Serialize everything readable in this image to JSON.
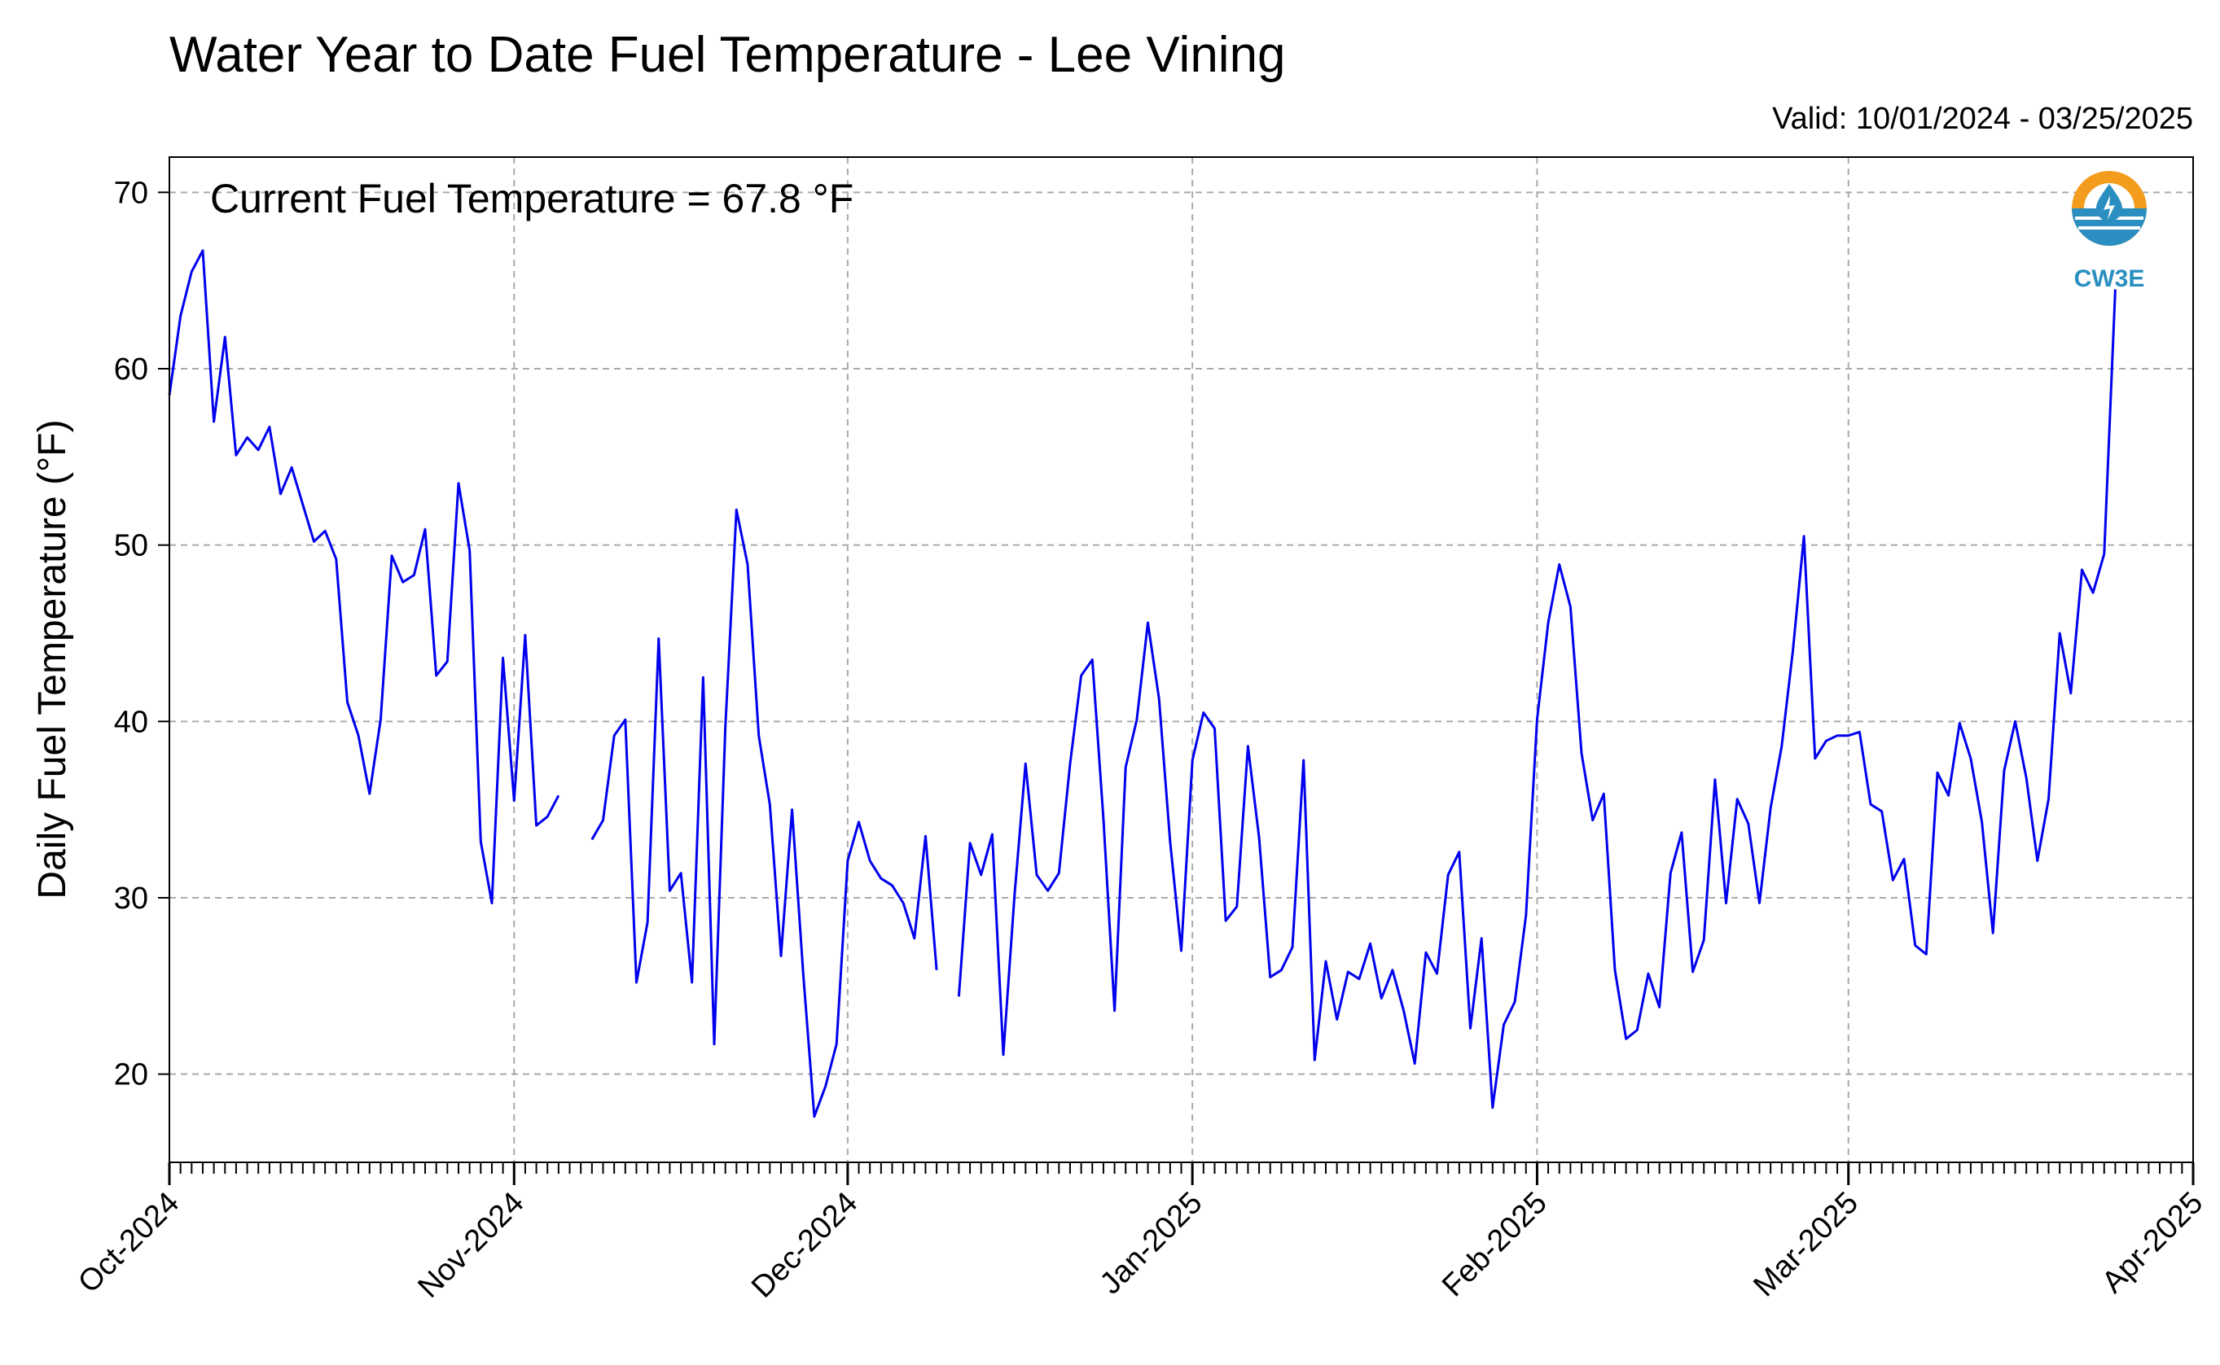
{
  "chart_data": {
    "type": "line",
    "title": "Water Year to Date Fuel Temperature - Lee Vining",
    "subtitle": "Valid: 10/01/2024 - 03/25/2025",
    "annotation": "Current Fuel Temperature = 67.8 °F",
    "ylabel": "Daily Fuel Temperature (°F)",
    "xlabel": "",
    "xlim": [
      "2024-10-01",
      "2025-04-01"
    ],
    "ylim": [
      15,
      72
    ],
    "yticks": [
      20,
      30,
      40,
      50,
      60,
      70
    ],
    "xticks": [
      {
        "date": "2024-10-01",
        "label": "Oct-2024"
      },
      {
        "date": "2024-11-01",
        "label": "Nov-2024"
      },
      {
        "date": "2024-12-01",
        "label": "Dec-2024"
      },
      {
        "date": "2025-01-01",
        "label": "Jan-2025"
      },
      {
        "date": "2025-02-01",
        "label": "Feb-2025"
      },
      {
        "date": "2025-03-01",
        "label": "Mar-2025"
      },
      {
        "date": "2025-04-01",
        "label": "Apr-2025"
      }
    ],
    "grid": true,
    "line_color": "#0000ee",
    "logo": {
      "text": "CW3E",
      "colors": {
        "ring": "#f39c1e",
        "water": "#2a8fc0"
      }
    },
    "series": [
      {
        "segments": [
          [
            [
              "2024-10-01",
              58.5
            ],
            [
              "2024-10-02",
              63.0
            ],
            [
              "2024-10-03",
              65.5
            ],
            [
              "2024-10-04",
              66.7
            ],
            [
              "2024-10-05",
              57.0
            ],
            [
              "2024-10-06",
              61.8
            ],
            [
              "2024-10-07",
              55.1
            ],
            [
              "2024-10-08",
              56.1
            ],
            [
              "2024-10-09",
              55.4
            ],
            [
              "2024-10-10",
              56.7
            ],
            [
              "2024-10-11",
              52.9
            ],
            [
              "2024-10-12",
              54.4
            ],
            [
              "2024-10-13",
              52.3
            ],
            [
              "2024-10-14",
              50.2
            ],
            [
              "2024-10-15",
              50.8
            ],
            [
              "2024-10-16",
              49.2
            ],
            [
              "2024-10-17",
              41.1
            ],
            [
              "2024-10-18",
              39.2
            ],
            [
              "2024-10-19",
              35.9
            ],
            [
              "2024-10-20",
              40.1
            ],
            [
              "2024-10-21",
              49.4
            ],
            [
              "2024-10-22",
              47.9
            ],
            [
              "2024-10-23",
              48.3
            ],
            [
              "2024-10-24",
              50.9
            ],
            [
              "2024-10-25",
              42.6
            ],
            [
              "2024-10-26",
              43.4
            ],
            [
              "2024-10-27",
              53.5
            ],
            [
              "2024-10-28",
              49.7
            ],
            [
              "2024-10-29",
              33.2
            ],
            [
              "2024-10-30",
              29.7
            ],
            [
              "2024-10-31",
              43.6
            ],
            [
              "2024-11-01",
              35.5
            ],
            [
              "2024-11-02",
              44.9
            ],
            [
              "2024-11-03",
              34.1
            ],
            [
              "2024-11-04",
              34.6
            ],
            [
              "2024-11-05",
              35.8
            ]
          ],
          [
            [
              "2024-11-08",
              33.3
            ],
            [
              "2024-11-09",
              34.4
            ],
            [
              "2024-11-10",
              39.2
            ],
            [
              "2024-11-11",
              40.1
            ],
            [
              "2024-11-12",
              25.2
            ],
            [
              "2024-11-13",
              28.6
            ],
            [
              "2024-11-14",
              44.7
            ],
            [
              "2024-11-15",
              30.4
            ],
            [
              "2024-11-16",
              31.4
            ],
            [
              "2024-11-17",
              25.2
            ],
            [
              "2024-11-18",
              42.5
            ],
            [
              "2024-11-19",
              21.7
            ],
            [
              "2024-11-20",
              39.7
            ],
            [
              "2024-11-21",
              52.0
            ],
            [
              "2024-11-22",
              48.9
            ],
            [
              "2024-11-23",
              39.2
            ],
            [
              "2024-11-24",
              35.3
            ],
            [
              "2024-11-25",
              26.7
            ],
            [
              "2024-11-26",
              35.0
            ],
            [
              "2024-11-27",
              25.7
            ],
            [
              "2024-11-28",
              17.6
            ],
            [
              "2024-11-29",
              19.3
            ],
            [
              "2024-11-30",
              21.7
            ],
            [
              "2024-12-01",
              32.1
            ],
            [
              "2024-12-02",
              34.3
            ],
            [
              "2024-12-03",
              32.1
            ],
            [
              "2024-12-04",
              31.1
            ],
            [
              "2024-12-05",
              30.7
            ],
            [
              "2024-12-06",
              29.7
            ],
            [
              "2024-12-07",
              27.7
            ],
            [
              "2024-12-08",
              33.5
            ],
            [
              "2024-12-09",
              25.9
            ]
          ],
          [
            [
              "2024-12-11",
              24.4
            ],
            [
              "2024-12-12",
              33.1
            ],
            [
              "2024-12-13",
              31.3
            ],
            [
              "2024-12-14",
              33.6
            ],
            [
              "2024-12-15",
              21.1
            ],
            [
              "2024-12-16",
              30.1
            ],
            [
              "2024-12-17",
              37.6
            ],
            [
              "2024-12-18",
              31.3
            ],
            [
              "2024-12-19",
              30.4
            ],
            [
              "2024-12-20",
              31.4
            ],
            [
              "2024-12-21",
              37.6
            ],
            [
              "2024-12-22",
              42.6
            ],
            [
              "2024-12-23",
              43.5
            ],
            [
              "2024-12-24",
              34.5
            ],
            [
              "2024-12-25",
              23.6
            ],
            [
              "2024-12-26",
              37.4
            ],
            [
              "2024-12-27",
              40.1
            ],
            [
              "2024-12-28",
              45.6
            ],
            [
              "2024-12-29",
              41.3
            ],
            [
              "2024-12-30",
              33.2
            ],
            [
              "2024-12-31",
              27.0
            ],
            [
              "2025-01-01",
              37.8
            ],
            [
              "2025-01-02",
              40.5
            ],
            [
              "2025-01-03",
              39.6
            ],
            [
              "2025-01-04",
              28.7
            ],
            [
              "2025-01-05",
              29.5
            ],
            [
              "2025-01-06",
              38.6
            ],
            [
              "2025-01-07",
              33.4
            ],
            [
              "2025-01-08",
              25.5
            ],
            [
              "2025-01-09",
              25.9
            ],
            [
              "2025-01-10",
              27.2
            ],
            [
              "2025-01-11",
              37.8
            ],
            [
              "2025-01-12",
              20.8
            ],
            [
              "2025-01-13",
              26.4
            ],
            [
              "2025-01-14",
              23.1
            ],
            [
              "2025-01-15",
              25.8
            ],
            [
              "2025-01-16",
              25.4
            ],
            [
              "2025-01-17",
              27.4
            ],
            [
              "2025-01-18",
              24.3
            ],
            [
              "2025-01-19",
              25.9
            ],
            [
              "2025-01-20",
              23.6
            ],
            [
              "2025-01-21",
              20.6
            ],
            [
              "2025-01-22",
              26.9
            ],
            [
              "2025-01-23",
              25.7
            ],
            [
              "2025-01-24",
              31.3
            ],
            [
              "2025-01-25",
              32.6
            ],
            [
              "2025-01-26",
              22.6
            ],
            [
              "2025-01-27",
              27.7
            ],
            [
              "2025-01-28",
              18.1
            ],
            [
              "2025-01-29",
              22.8
            ],
            [
              "2025-01-30",
              24.1
            ],
            [
              "2025-01-31",
              29.0
            ],
            [
              "2025-02-01",
              40.1
            ],
            [
              "2025-02-02",
              45.6
            ],
            [
              "2025-02-03",
              48.9
            ],
            [
              "2025-02-04",
              46.5
            ],
            [
              "2025-02-05",
              38.2
            ],
            [
              "2025-02-06",
              34.4
            ],
            [
              "2025-02-07",
              35.9
            ],
            [
              "2025-02-08",
              25.9
            ],
            [
              "2025-02-09",
              22.0
            ],
            [
              "2025-02-10",
              22.5
            ],
            [
              "2025-02-11",
              25.7
            ],
            [
              "2025-02-12",
              23.8
            ],
            [
              "2025-02-13",
              31.4
            ],
            [
              "2025-02-14",
              33.7
            ],
            [
              "2025-02-15",
              25.8
            ],
            [
              "2025-02-16",
              27.6
            ],
            [
              "2025-02-17",
              36.7
            ],
            [
              "2025-02-18",
              29.7
            ],
            [
              "2025-02-19",
              35.6
            ],
            [
              "2025-02-20",
              34.2
            ],
            [
              "2025-02-21",
              29.7
            ],
            [
              "2025-02-22",
              35.1
            ],
            [
              "2025-02-23",
              38.6
            ],
            [
              "2025-02-24",
              44.0
            ],
            [
              "2025-02-25",
              50.5
            ],
            [
              "2025-02-26",
              37.9
            ],
            [
              "2025-02-27",
              38.9
            ],
            [
              "2025-02-28",
              39.2
            ],
            [
              "2025-03-01",
              39.2
            ],
            [
              "2025-03-02",
              39.4
            ],
            [
              "2025-03-03",
              35.3
            ],
            [
              "2025-03-04",
              34.9
            ],
            [
              "2025-03-05",
              31.0
            ],
            [
              "2025-03-06",
              32.2
            ],
            [
              "2025-03-07",
              27.3
            ],
            [
              "2025-03-08",
              26.8
            ],
            [
              "2025-03-09",
              37.1
            ],
            [
              "2025-03-10",
              35.8
            ],
            [
              "2025-03-11",
              39.9
            ],
            [
              "2025-03-12",
              37.9
            ],
            [
              "2025-03-13",
              34.3
            ],
            [
              "2025-03-14",
              28.0
            ],
            [
              "2025-03-15",
              37.2
            ],
            [
              "2025-03-16",
              40.0
            ],
            [
              "2025-03-17",
              36.8
            ],
            [
              "2025-03-18",
              32.1
            ],
            [
              "2025-03-19",
              35.6
            ],
            [
              "2025-03-20",
              45.0
            ],
            [
              "2025-03-21",
              41.6
            ],
            [
              "2025-03-22",
              48.6
            ],
            [
              "2025-03-23",
              47.3
            ],
            [
              "2025-03-24",
              49.5
            ],
            [
              "2025-03-25",
              64.5
            ]
          ]
        ]
      }
    ]
  }
}
